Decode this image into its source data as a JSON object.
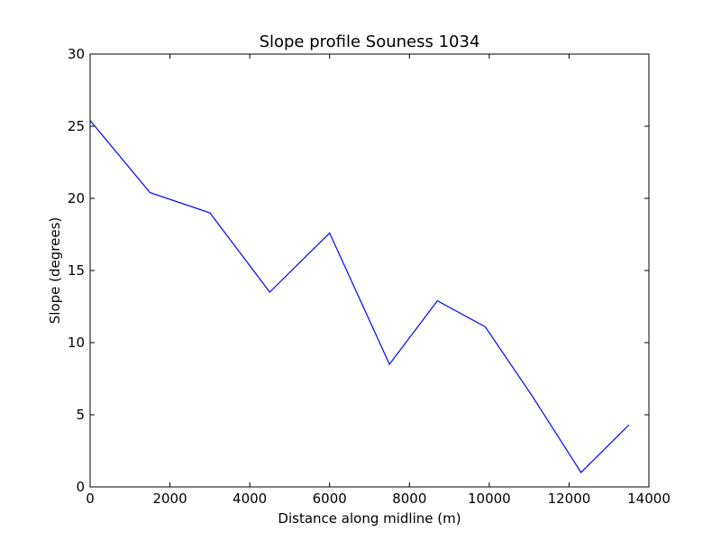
{
  "chart_data": {
    "type": "line",
    "title": "Slope profile Souness 1034",
    "xlabel": "Distance along midline (m)",
    "ylabel": "Slope (degrees)",
    "xlim": [
      0,
      14000
    ],
    "ylim": [
      0,
      30
    ],
    "xticks": [
      "0",
      "2000",
      "4000",
      "6000",
      "8000",
      "10000",
      "12000",
      "14000"
    ],
    "yticks": [
      "0",
      "5",
      "10",
      "15",
      "20",
      "25",
      "30"
    ],
    "grid": false,
    "line_color": "#0000ff",
    "series": [
      {
        "x": [
          0,
          1500,
          3000,
          4500,
          6000,
          7500,
          8700,
          9900,
          11100,
          12300,
          13500
        ],
        "y": [
          25.4,
          20.4,
          19.0,
          13.5,
          17.6,
          8.5,
          12.9,
          11.1,
          6.2,
          1.0,
          4.3
        ]
      }
    ]
  }
}
